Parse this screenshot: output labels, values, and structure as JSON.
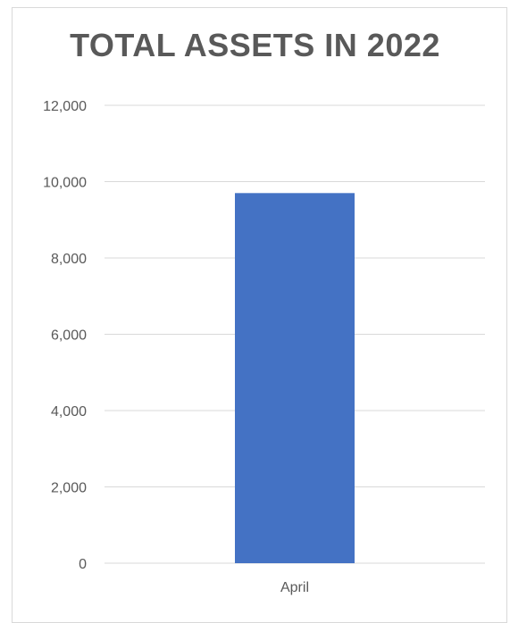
{
  "chart_data": {
    "type": "bar",
    "title": "TOTAL ASSETS IN 2022",
    "categories": [
      "April"
    ],
    "values": [
      9700
    ],
    "ylim": [
      0,
      12000
    ],
    "yticks": [
      0,
      2000,
      4000,
      6000,
      8000,
      10000,
      12000
    ],
    "ytick_labels": [
      "0",
      "2,000",
      "4,000",
      "6,000",
      "8,000",
      "10,000",
      "12,000"
    ],
    "grid": true,
    "legend": "none",
    "bar_color": "#4472c4",
    "gridline_color": "#d9d9d9"
  }
}
